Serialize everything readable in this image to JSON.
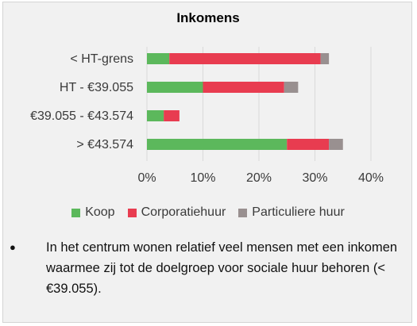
{
  "chart_data": {
    "type": "bar",
    "orientation": "horizontal",
    "stacked": true,
    "title": "Inkomens",
    "categories": [
      "< HT-grens",
      "HT - €39.055",
      "€39.055 - €43.574",
      "> €43.574"
    ],
    "series": [
      {
        "name": "Koop",
        "values": [
          4,
          10,
          3,
          25
        ],
        "color": "#5cb85c"
      },
      {
        "name": "Corporatiehuur",
        "values": [
          27,
          14.5,
          2.8,
          7.5
        ],
        "color": "#e83c50"
      },
      {
        "name": "Particuliere huur",
        "values": [
          1.5,
          2.5,
          0,
          2.5
        ],
        "color": "#999090"
      }
    ],
    "xlim": [
      0,
      40
    ],
    "xticks": [
      "0%",
      "10%",
      "20%",
      "30%",
      "40%"
    ],
    "grid": "vertical",
    "legend": "bottom"
  },
  "note": {
    "bullet": "●",
    "text": "In het centrum wonen relatief veel mensen met een inkomen waarmee zij tot de doelgroep voor sociale huur behoren (< €39.055)."
  }
}
